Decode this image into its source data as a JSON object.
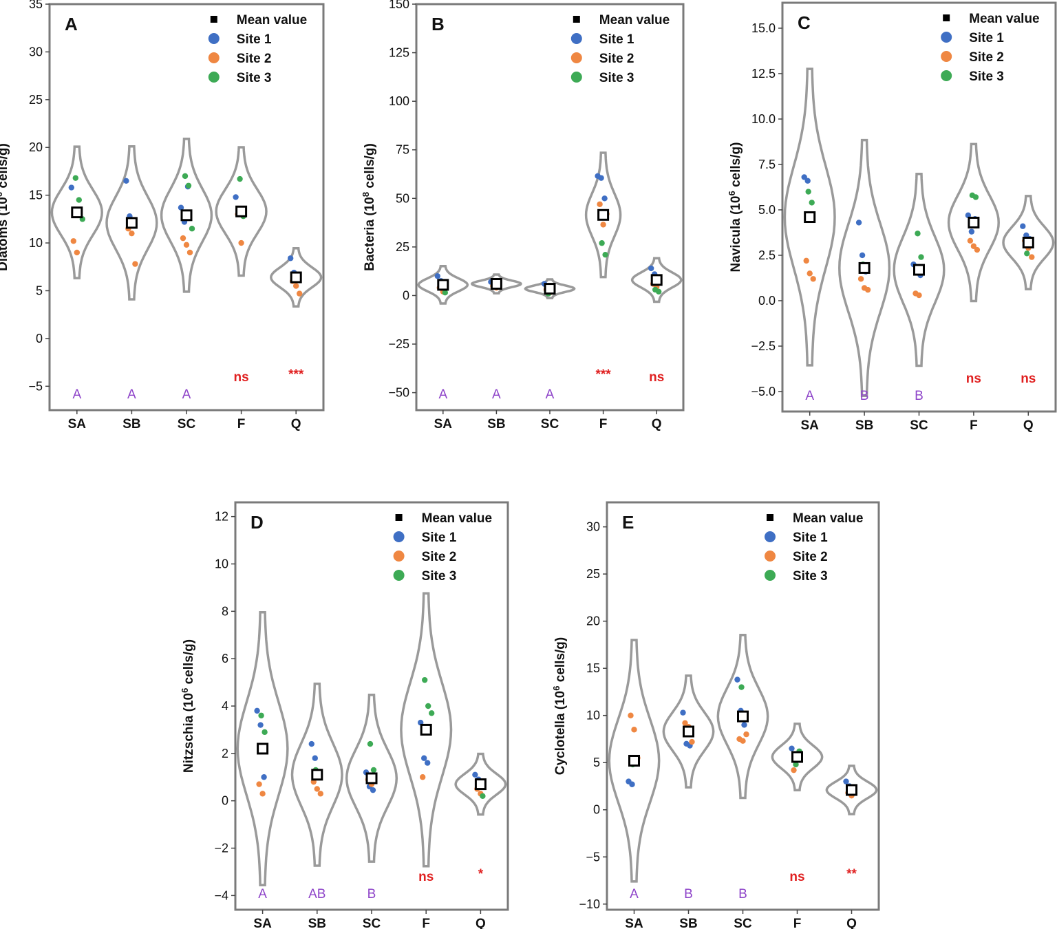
{
  "legend": {
    "mean_label": "Mean value",
    "sites": [
      {
        "name": "Site 1",
        "color": "#3f6fc4"
      },
      {
        "name": "Site 2",
        "color": "#ef8742"
      },
      {
        "name": "Site 3",
        "color": "#3daa55"
      }
    ]
  },
  "colors": {
    "violin": "#9a9a9a",
    "group_letter": "#8e44c9",
    "significance": "#e02020"
  },
  "chart_data": [
    {
      "panel": "A",
      "type": "violin",
      "ylabel_prefix": "Diatoms (10",
      "ylabel_sup": "6",
      "ylabel_suffix": " cells/g)",
      "categories": [
        "SA",
        "SB",
        "SC",
        "F",
        "Q"
      ],
      "ylim": [
        -7.5,
        35
      ],
      "yticks": [
        -5,
        0,
        5,
        10,
        15,
        20,
        25,
        30,
        35
      ],
      "ytick_labels": [
        "−5",
        "0",
        "5",
        "10",
        "15",
        "20",
        "25",
        "30",
        "35"
      ],
      "means": [
        13.2,
        12.1,
        12.9,
        13.3,
        6.4
      ],
      "spread": [
        4.3,
        5.0,
        5.0,
        4.2,
        1.9
      ],
      "points": [
        [
          [
            15.8,
            13.5
          ],
          [
            10.2,
            9.0
          ],
          [
            16.8,
            14.5,
            12.5
          ]
        ],
        [
          [
            16.5,
            12.8,
            12.2
          ],
          [
            11.5,
            11.0,
            7.8
          ],
          [
            12.0
          ]
        ],
        [
          [
            13.7,
            12.2,
            15.9
          ],
          [
            10.5,
            9.8,
            9.0
          ],
          [
            17.0,
            16.0,
            11.5
          ]
        ],
        [
          [
            14.8,
            13.2
          ],
          [
            13.0,
            10.0
          ],
          [
            16.7,
            12.8
          ]
        ],
        [
          [
            8.4,
            6.9
          ],
          [
            6.0,
            5.5,
            4.7
          ],
          [
            6.3,
            6.1
          ]
        ]
      ],
      "annotations": [
        {
          "text": "A",
          "kind": "group"
        },
        {
          "text": "A",
          "kind": "group"
        },
        {
          "text": "A",
          "kind": "group"
        },
        {
          "text": "ns",
          "kind": "sig"
        },
        {
          "text": "***",
          "kind": "sig"
        }
      ]
    },
    {
      "panel": "B",
      "type": "violin",
      "ylabel_prefix": "Bacteria (10",
      "ylabel_sup": "8",
      "ylabel_suffix": " cells/g)",
      "categories": [
        "SA",
        "SB",
        "SC",
        "F",
        "Q"
      ],
      "ylim": [
        -59,
        150
      ],
      "yticks": [
        -50,
        -25,
        0,
        25,
        50,
        75,
        100,
        125,
        150
      ],
      "ytick_labels": [
        "−50",
        "−25",
        "0",
        "25",
        "50",
        "75",
        "100",
        "125",
        "150"
      ],
      "means": [
        5.5,
        6.0,
        3.5,
        41.5,
        8.0
      ],
      "spread": [
        6.0,
        3.0,
        3.0,
        20.0,
        7.0
      ],
      "points": [
        [
          [
            10.0,
            7.5
          ],
          [
            4.0,
            2.0
          ],
          [
            5.0,
            1.5
          ]
        ],
        [
          [
            7.0,
            6.5
          ],
          [
            5.0,
            4.0
          ],
          [
            5.5
          ]
        ],
        [
          [
            6.0,
            4.5
          ],
          [
            3.0,
            1.5
          ],
          [
            1.0,
            2.0
          ]
        ],
        [
          [
            61.5,
            60.5,
            50.0
          ],
          [
            47.0,
            36.5,
            42.0
          ],
          [
            27.0,
            21.0
          ]
        ],
        [
          [
            14.0,
            11.0
          ],
          [
            6.0,
            4.5
          ],
          [
            3.0,
            2.0
          ]
        ]
      ],
      "annotations": [
        {
          "text": "A",
          "kind": "group"
        },
        {
          "text": "A",
          "kind": "group"
        },
        {
          "text": "A",
          "kind": "group"
        },
        {
          "text": "***",
          "kind": "sig"
        },
        {
          "text": "ns",
          "kind": "sig"
        }
      ]
    },
    {
      "panel": "C",
      "type": "violin",
      "ylabel_prefix": "Navicula (10",
      "ylabel_sup": "6",
      "ylabel_suffix": " cells/g)",
      "categories": [
        "SA",
        "SB",
        "SC",
        "F",
        "Q"
      ],
      "ylim": [
        -6.1,
        16.4
      ],
      "yticks": [
        -5,
        -2.5,
        0,
        2.5,
        5,
        7.5,
        10,
        12.5,
        15
      ],
      "ytick_labels": [
        "−5.0",
        "−2.5",
        "0.0",
        "2.5",
        "5.0",
        "7.5",
        "10.0",
        "12.5",
        "15.0"
      ],
      "means": [
        4.6,
        1.8,
        1.7,
        4.3,
        3.2
      ],
      "spread": [
        5.1,
        4.4,
        3.3,
        2.7,
        1.6
      ],
      "points": [
        [
          [
            6.8,
            6.6,
            4.6
          ],
          [
            2.2,
            1.5,
            1.2
          ],
          [
            6.0,
            5.4
          ]
        ],
        [
          [
            4.3,
            2.5,
            1.6
          ],
          [
            1.2,
            0.7,
            0.6
          ],
          [
            2.0
          ]
        ],
        [
          [
            2.0,
            1.6,
            1.4
          ],
          [
            0.4,
            0.3
          ],
          [
            3.7,
            2.4
          ]
        ],
        [
          [
            4.7,
            3.8,
            4.5
          ],
          [
            3.3,
            3.0,
            2.8
          ],
          [
            5.8,
            5.7
          ]
        ],
        [
          [
            4.1,
            3.6,
            3.4
          ],
          [
            3.3,
            2.9,
            2.4
          ],
          [
            2.6
          ]
        ]
      ],
      "annotations": [
        {
          "text": "A",
          "kind": "group"
        },
        {
          "text": "B",
          "kind": "group"
        },
        {
          "text": "B",
          "kind": "group"
        },
        {
          "text": "ns",
          "kind": "sig"
        },
        {
          "text": "ns",
          "kind": "sig"
        }
      ]
    },
    {
      "panel": "D",
      "type": "violin",
      "ylabel_prefix": "Nitzschia (10",
      "ylabel_sup": "6",
      "ylabel_suffix": " cells/g)",
      "categories": [
        "SA",
        "SB",
        "SC",
        "F",
        "Q"
      ],
      "ylim": [
        -4.6,
        12.6
      ],
      "yticks": [
        -4,
        -2,
        0,
        2,
        4,
        6,
        8,
        10,
        12
      ],
      "ytick_labels": [
        "−4",
        "−2",
        "0",
        "2",
        "4",
        "6",
        "8",
        "10",
        "12"
      ],
      "means": [
        2.2,
        1.1,
        0.95,
        3.0,
        0.7
      ],
      "spread": [
        3.6,
        2.4,
        2.2,
        3.6,
        0.8
      ],
      "points": [
        [
          [
            3.8,
            3.2,
            1.0
          ],
          [
            0.7,
            0.3
          ],
          [
            3.6,
            2.9
          ]
        ],
        [
          [
            2.4,
            1.8,
            1.0
          ],
          [
            0.8,
            0.5,
            0.3
          ],
          [
            1.3
          ]
        ],
        [
          [
            1.2,
            0.6,
            0.45
          ],
          [
            0.9,
            0.7
          ],
          [
            2.4,
            1.3
          ]
        ],
        [
          [
            3.3,
            1.8,
            1.6
          ],
          [
            1.0
          ],
          [
            5.1,
            4.0,
            3.7
          ]
        ],
        [
          [
            1.1,
            0.9
          ],
          [
            0.5,
            0.3
          ],
          [
            0.7,
            0.2
          ]
        ]
      ],
      "annotations": [
        {
          "text": "A",
          "kind": "group"
        },
        {
          "text": "AB",
          "kind": "group"
        },
        {
          "text": "B",
          "kind": "group"
        },
        {
          "text": "ns",
          "kind": "sig"
        },
        {
          "text": "*",
          "kind": "sig"
        }
      ]
    },
    {
      "panel": "E",
      "type": "violin",
      "ylabel_prefix": "Cyclotella (10",
      "ylabel_sup": "6",
      "ylabel_suffix": " cells/g)",
      "categories": [
        "SA",
        "SB",
        "SC",
        "F",
        "Q"
      ],
      "ylim": [
        -10.6,
        32.6
      ],
      "yticks": [
        -10,
        -5,
        0,
        5,
        10,
        15,
        20,
        25,
        30
      ],
      "ytick_labels": [
        "−10",
        "−5",
        "0",
        "5",
        "10",
        "15",
        "20",
        "25",
        "30"
      ],
      "means": [
        5.2,
        8.3,
        9.9,
        5.6,
        2.1
      ],
      "spread": [
        8.0,
        3.7,
        5.4,
        2.2,
        1.6
      ],
      "points": [
        [
          [
            3.0,
            2.7,
            5.0
          ],
          [
            10.0,
            8.5,
            5.5
          ],
          [
            4.8,
            5.2
          ]
        ],
        [
          [
            10.3,
            7.0,
            6.8
          ],
          [
            9.2,
            8.8,
            7.2
          ],
          [
            8.5
          ]
        ],
        [
          [
            13.8,
            10.5,
            9.0
          ],
          [
            7.5,
            7.3,
            8.0
          ],
          [
            13.0,
            10.2
          ]
        ],
        [
          [
            6.5,
            5.5
          ],
          [
            4.2,
            5.8
          ],
          [
            4.8,
            6.2
          ]
        ],
        [
          [
            3.0,
            2.5
          ],
          [
            1.8,
            1.5
          ],
          [
            2.2,
            1.9
          ]
        ]
      ],
      "annotations": [
        {
          "text": "A",
          "kind": "group"
        },
        {
          "text": "B",
          "kind": "group"
        },
        {
          "text": "B",
          "kind": "group"
        },
        {
          "text": "ns",
          "kind": "sig"
        },
        {
          "text": "**",
          "kind": "sig"
        }
      ]
    }
  ]
}
